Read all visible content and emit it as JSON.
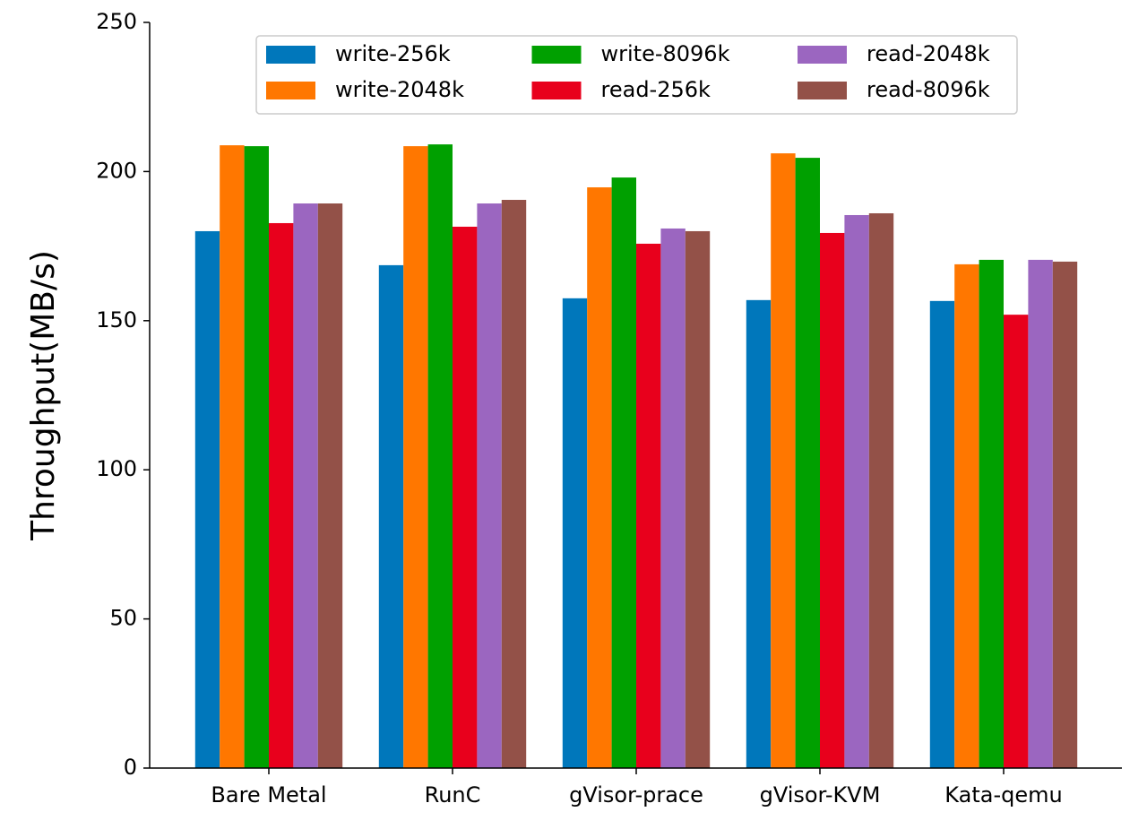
{
  "chart_data": {
    "type": "bar",
    "y_label": "Throughput(MB/s)",
    "categories": [
      "Bare Metal",
      "RunC",
      "gVisor-prace",
      "gVisor-KVM",
      "Kata-qemu"
    ],
    "series": [
      {
        "name": "write-256k",
        "color": "#0077bb",
        "values": [
          180,
          168.6,
          157.5,
          156.9,
          156.6
        ]
      },
      {
        "name": "write-2048k",
        "color": "#ff7700",
        "values": [
          208.8,
          208.5,
          194.7,
          206.1,
          168.9
        ]
      },
      {
        "name": "write-8096k",
        "color": "#00a000",
        "values": [
          208.5,
          209.1,
          198,
          204.6,
          170.4
        ]
      },
      {
        "name": "read-256k",
        "color": "#e8001c",
        "values": [
          182.7,
          181.5,
          175.8,
          179.4,
          152
        ]
      },
      {
        "name": "read-2048k",
        "color": "#9b66c0",
        "values": [
          189.3,
          189.3,
          180.9,
          185.4,
          170.4
        ]
      },
      {
        "name": "read-8096k",
        "color": "#935148",
        "values": [
          189.3,
          190.5,
          180,
          186,
          169.8
        ]
      }
    ],
    "ylim": [
      0,
      250
    ],
    "yticks": [
      0,
      50,
      100,
      150,
      200,
      250
    ],
    "legend": {
      "position": "top",
      "columns": 3
    }
  }
}
